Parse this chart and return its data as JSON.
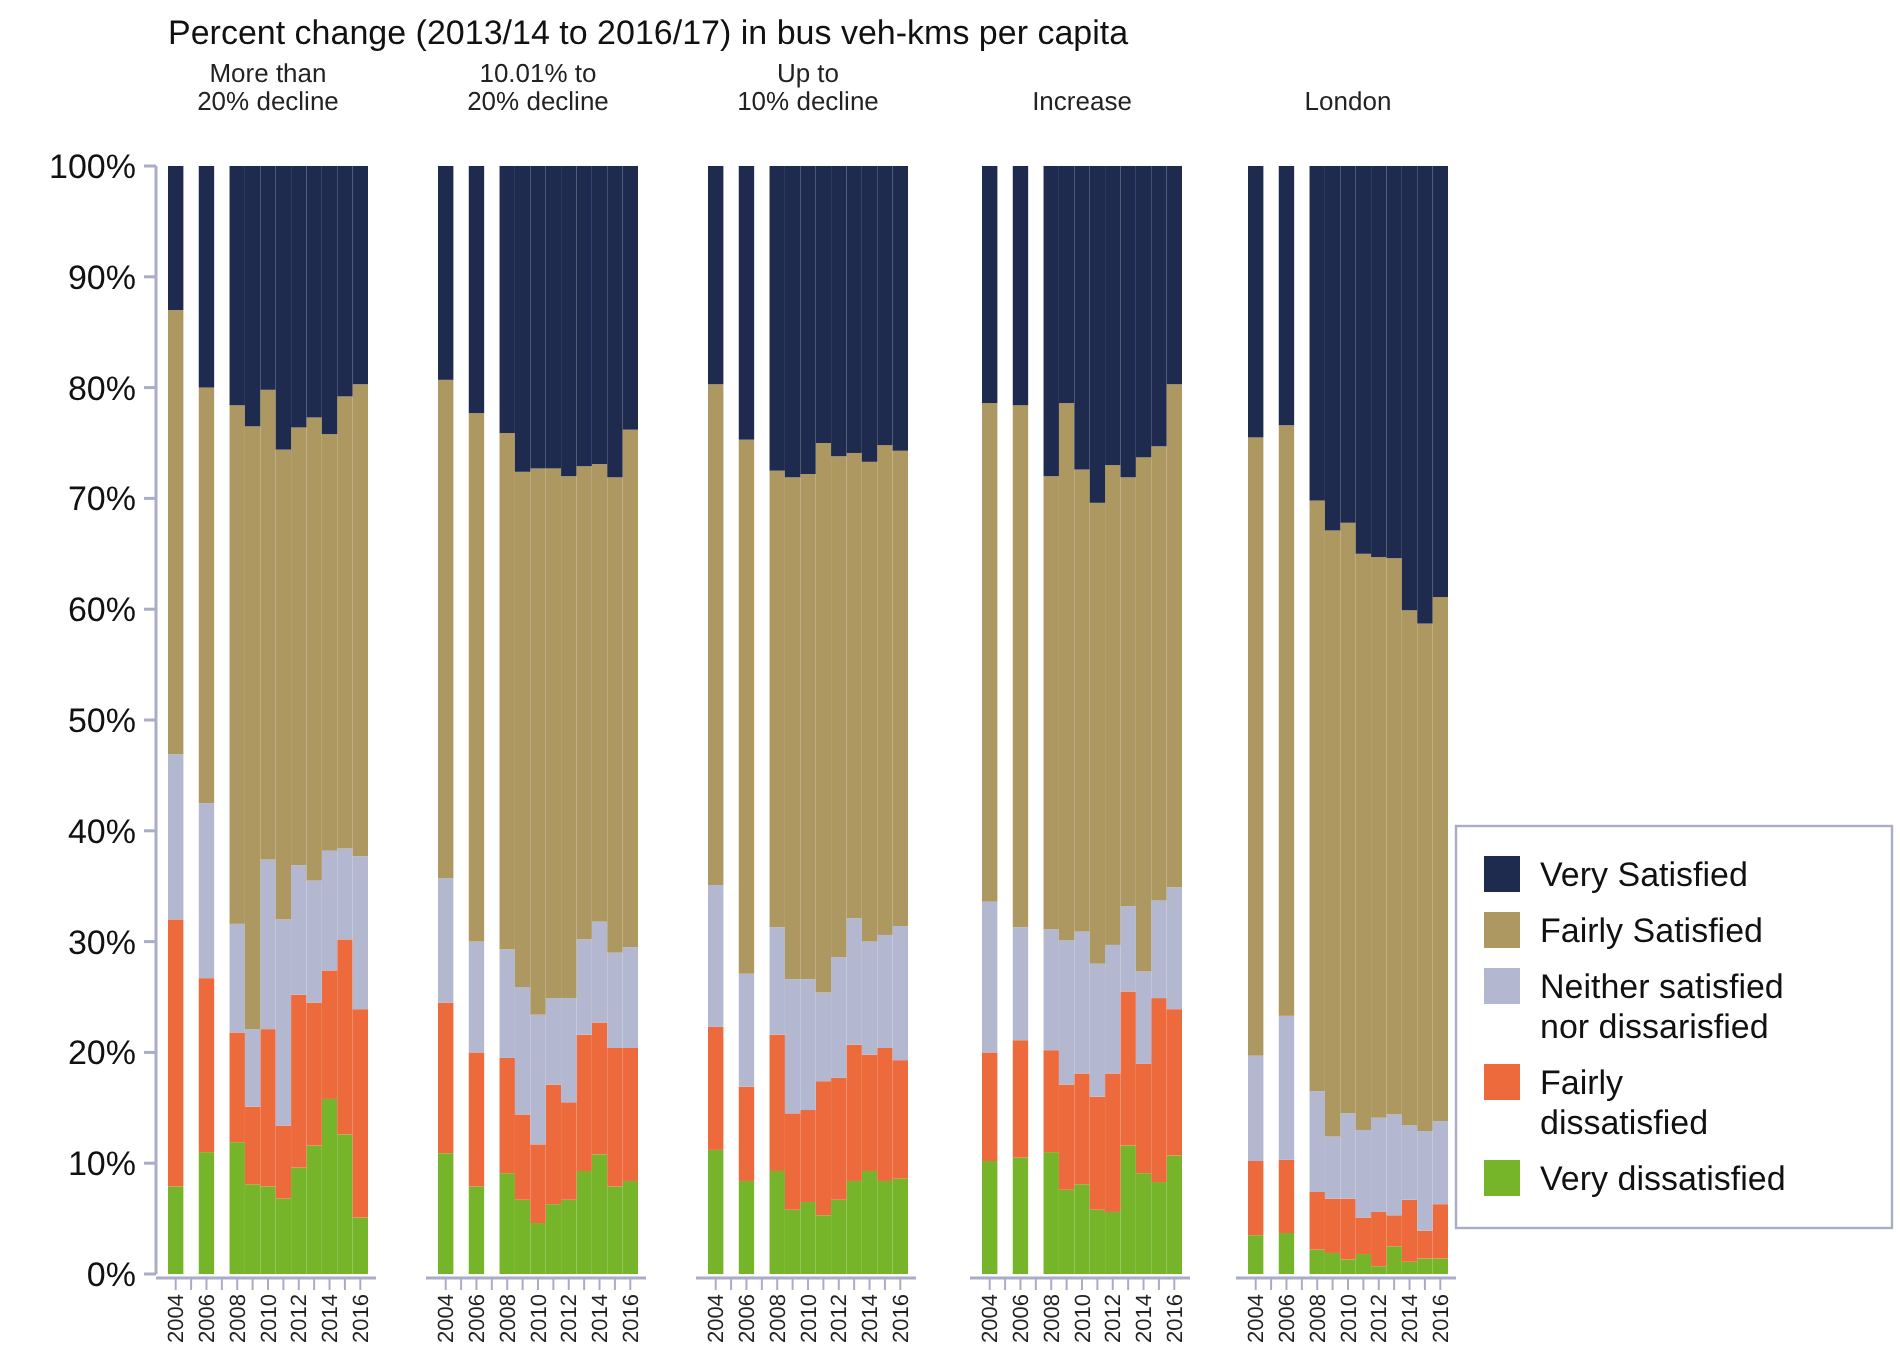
{
  "chart_data": [
    {
      "type": "bar",
      "stacked": true,
      "title": "Percent change (2013/14 to 2016/17) in bus veh-kms per capita",
      "subtitle": "More than 20% decline",
      "categories": [
        "2004",
        null,
        "2006",
        null,
        "2008",
        null,
        "2010",
        null,
        "2012",
        null,
        "2014",
        null,
        "2016"
      ],
      "ylim": [
        0,
        100
      ],
      "yticks": [
        {
          "value": 0,
          "label": "0%"
        },
        {
          "value": 10,
          "label": "10%"
        },
        {
          "value": 20,
          "label": "20%"
        },
        {
          "value": 30,
          "label": "30%"
        },
        {
          "value": 40,
          "label": "40%"
        },
        {
          "value": 50,
          "label": "50%"
        },
        {
          "value": 60,
          "label": "60%"
        },
        {
          "value": 70,
          "label": "70%"
        },
        {
          "value": 80,
          "label": "80%"
        },
        {
          "value": 90,
          "label": "90%"
        },
        {
          "value": 100,
          "label": "100%"
        }
      ],
      "series": [
        {
          "color": "#76b52a",
          "values": [
            7.9,
            null,
            11.0,
            null,
            11.9,
            8.1,
            7.9,
            6.8,
            9.6,
            11.6,
            15.8,
            12.6,
            5.1
          ]
        },
        {
          "color": "#ec6a3b",
          "values": [
            24.1,
            null,
            15.7,
            null,
            9.9,
            7.0,
            14.2,
            6.6,
            15.6,
            12.9,
            11.6,
            17.6,
            18.8
          ]
        },
        {
          "color": "#b3b8d0",
          "values": [
            14.9,
            null,
            15.8,
            null,
            9.8,
            7.0,
            15.3,
            18.6,
            11.7,
            11.0,
            10.8,
            8.2,
            13.8
          ]
        },
        {
          "color": "#ae9862",
          "values": [
            40.1,
            null,
            37.5,
            null,
            46.8,
            54.4,
            42.4,
            42.4,
            39.5,
            41.8,
            37.6,
            40.8,
            42.6
          ]
        },
        {
          "color": "#1f2a4f",
          "values": [
            13.0,
            null,
            20.0,
            null,
            21.6,
            23.5,
            20.2,
            25.6,
            23.6,
            22.7,
            24.2,
            20.8,
            19.7
          ]
        }
      ]
    },
    {
      "type": "bar",
      "stacked": true,
      "subtitle": "10.01% to 20% decline",
      "tick_labels": "x",
      "categories": [
        "2004",
        null,
        "2006",
        null,
        "2008",
        null,
        "2010",
        null,
        "2012",
        null,
        "2014",
        null,
        "2016"
      ],
      "ylim": [
        0,
        100
      ],
      "series": [
        {
          "color": "#76b52a",
          "values": [
            10.9,
            null,
            7.9,
            null,
            9.1,
            6.7,
            4.6,
            6.3,
            6.7,
            9.3,
            10.8,
            7.9,
            8.4
          ]
        },
        {
          "color": "#ec6a3b",
          "values": [
            13.6,
            null,
            12.1,
            null,
            10.4,
            7.7,
            7.1,
            10.8,
            8.8,
            12.3,
            11.9,
            12.5,
            12.0
          ]
        },
        {
          "color": "#b3b8d0",
          "values": [
            11.2,
            null,
            10.0,
            null,
            9.8,
            11.5,
            11.7,
            7.8,
            9.4,
            8.6,
            9.1,
            8.6,
            9.1
          ]
        },
        {
          "color": "#ae9862",
          "values": [
            45.0,
            null,
            47.7,
            null,
            46.6,
            46.5,
            49.3,
            47.8,
            47.1,
            42.7,
            41.3,
            42.9,
            46.7
          ]
        },
        {
          "color": "#1f2a4f",
          "values": [
            19.3,
            null,
            22.3,
            null,
            24.1,
            27.6,
            27.3,
            27.3,
            28.0,
            27.1,
            26.9,
            28.1,
            23.8
          ]
        }
      ]
    },
    {
      "type": "bar",
      "stacked": true,
      "subtitle": "Up to 10% decline",
      "tick_labels": "x",
      "categories": [
        "2004",
        null,
        "2006",
        null,
        "2008",
        null,
        "2010",
        null,
        "2012",
        null,
        "2014",
        null,
        "2016"
      ],
      "ylim": [
        0,
        100
      ],
      "series": [
        {
          "color": "#76b52a",
          "values": [
            11.2,
            null,
            8.4,
            null,
            9.3,
            5.8,
            6.5,
            5.3,
            6.7,
            8.4,
            9.3,
            8.4,
            8.6
          ]
        },
        {
          "color": "#ec6a3b",
          "values": [
            11.1,
            null,
            8.5,
            null,
            12.3,
            8.7,
            8.3,
            12.1,
            11.0,
            12.3,
            10.5,
            12.0,
            10.7
          ]
        },
        {
          "color": "#b3b8d0",
          "values": [
            12.8,
            null,
            10.2,
            null,
            9.7,
            12.1,
            11.8,
            8.0,
            10.9,
            11.4,
            10.2,
            10.2,
            12.1
          ]
        },
        {
          "color": "#ae9862",
          "values": [
            45.2,
            null,
            48.2,
            null,
            41.2,
            45.3,
            45.6,
            49.6,
            45.2,
            42.0,
            43.3,
            44.2,
            42.9
          ]
        },
        {
          "color": "#1f2a4f",
          "values": [
            19.7,
            null,
            24.7,
            null,
            27.5,
            28.1,
            27.8,
            25.0,
            26.2,
            25.9,
            26.7,
            25.2,
            25.7
          ]
        }
      ]
    },
    {
      "type": "bar",
      "stacked": true,
      "subtitle": "Increase",
      "tick_labels": "x",
      "categories": [
        "2004",
        null,
        "2006",
        null,
        "2008",
        null,
        "2010",
        null,
        "2012",
        null,
        "2014",
        null,
        "2016"
      ],
      "ylim": [
        0,
        100
      ],
      "series": [
        {
          "color": "#76b52a",
          "values": [
            10.2,
            null,
            10.5,
            null,
            11.0,
            7.6,
            8.1,
            5.8,
            5.6,
            11.6,
            9.1,
            8.3,
            10.7
          ]
        },
        {
          "color": "#ec6a3b",
          "values": [
            9.8,
            null,
            10.6,
            null,
            9.2,
            9.5,
            10.0,
            10.2,
            12.5,
            13.9,
            9.9,
            16.6,
            13.2
          ]
        },
        {
          "color": "#b3b8d0",
          "values": [
            13.6,
            null,
            10.2,
            null,
            10.9,
            13.0,
            12.8,
            12.0,
            11.6,
            7.7,
            8.3,
            8.8,
            11.0
          ]
        },
        {
          "color": "#ae9862",
          "values": [
            45.0,
            null,
            47.1,
            null,
            40.9,
            48.5,
            41.7,
            41.6,
            43.3,
            38.7,
            46.4,
            41.0,
            45.4
          ]
        },
        {
          "color": "#1f2a4f",
          "values": [
            21.4,
            null,
            21.6,
            null,
            28.0,
            21.4,
            27.4,
            30.4,
            27.0,
            28.1,
            26.3,
            25.3,
            19.7
          ]
        }
      ]
    },
    {
      "type": "bar",
      "stacked": true,
      "subtitle": "London",
      "tick_labels": "x",
      "legend": "right",
      "categories": [
        "2004",
        null,
        "2006",
        null,
        "2008",
        null,
        "2010",
        null,
        "2012",
        null,
        "2014",
        null,
        "2016"
      ],
      "ylim": [
        0,
        100
      ],
      "series": [
        {
          "name": "Very dissatisfied",
          "color": "#76b52a",
          "values": [
            3.5,
            null,
            3.7,
            null,
            2.2,
            1.9,
            1.3,
            1.8,
            0.7,
            2.5,
            1.1,
            1.4,
            1.4
          ]
        },
        {
          "name": "Fairly dissatisfied",
          "color": "#ec6a3b",
          "values": [
            6.7,
            null,
            6.6,
            null,
            5.2,
            4.9,
            5.5,
            3.3,
            4.9,
            2.8,
            5.6,
            2.5,
            4.9
          ]
        },
        {
          "name": "Neither satisfied nor dissarisfied",
          "color": "#b3b8d0",
          "values": [
            9.5,
            null,
            13.0,
            null,
            9.1,
            5.6,
            7.7,
            7.9,
            8.5,
            9.1,
            6.7,
            9.0,
            7.5
          ]
        },
        {
          "name": "Fairly Satisfied",
          "color": "#ae9862",
          "values": [
            55.8,
            null,
            53.3,
            null,
            53.3,
            54.7,
            53.3,
            52.0,
            50.6,
            50.2,
            46.5,
            45.8,
            47.3
          ]
        },
        {
          "name": "Very Satisfied",
          "color": "#1f2a4f",
          "values": [
            24.5,
            null,
            23.4,
            null,
            30.2,
            32.9,
            32.2,
            35.0,
            35.3,
            35.4,
            40.1,
            41.3,
            38.9
          ]
        }
      ]
    }
  ]
}
